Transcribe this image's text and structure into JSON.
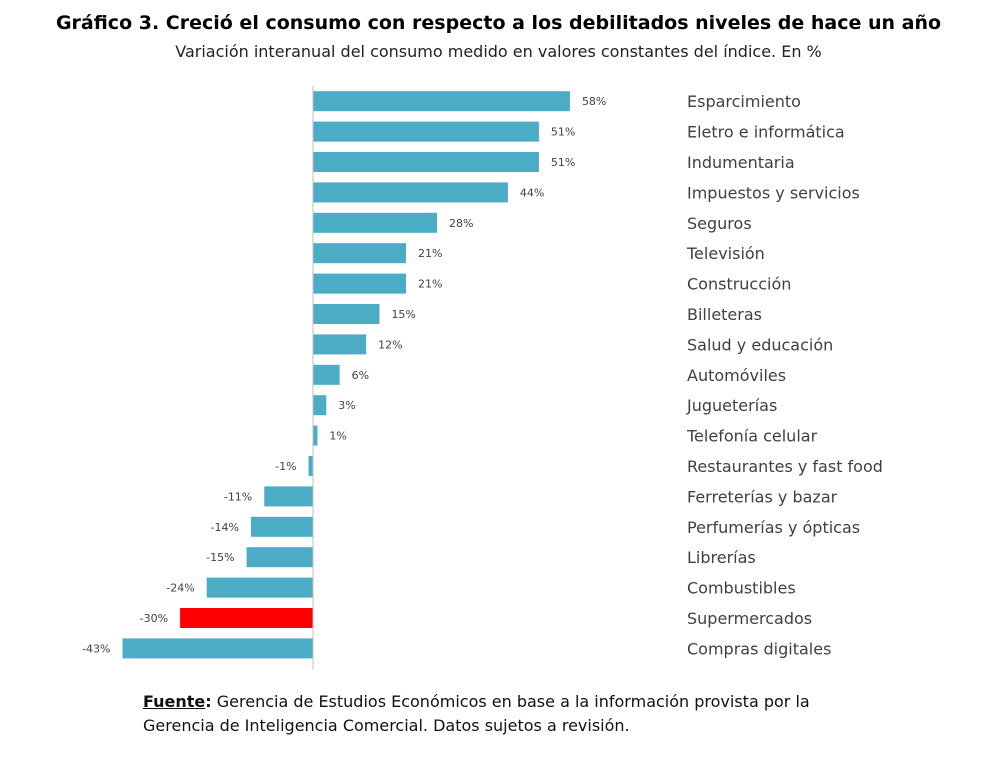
{
  "title": "Gráfico 3. Creció el consumo con respecto a los debilitados niveles de hace un año",
  "subtitle": "Variación interanual del consumo medido en valores constantes del índice. En %",
  "source": {
    "label": "Fuente",
    "line1": "Gerencia de Estudios Económicos en base a la información provista por la",
    "line2": "Gerencia de Inteligencia Comercial. Datos sujetos a revisión."
  },
  "colors": {
    "bar": "#4bacc6",
    "highlight": "#ff0000",
    "axis": "#bfbfbf",
    "label": "#404040",
    "category": "#404040"
  },
  "chart_data": {
    "type": "bar",
    "orientation": "horizontal",
    "title": "Gráfico 3. Creció el consumo con respecto a los debilitados niveles de hace un año",
    "xlabel": "",
    "ylabel": "",
    "unit": "%",
    "highlight_category": "Supermercados",
    "categories": [
      "Esparcimiento",
      "Eletro e informática",
      "Indumentaria",
      "Impuestos y servicios",
      "Seguros",
      "Televisión",
      "Construcción",
      "Billeteras",
      "Salud y educación",
      "Automóviles",
      "Jugueterías",
      "Telefonía celular",
      "Restaurantes y fast food",
      "Ferreterías y bazar",
      "Perfumerías y ópticas",
      "Librerías",
      "Combustibles",
      "Supermercados",
      "Compras digitales"
    ],
    "values": [
      58,
      51,
      51,
      44,
      28,
      21,
      21,
      15,
      12,
      6,
      3,
      1,
      -1,
      -11,
      -14,
      -15,
      -24,
      -30,
      -43
    ],
    "value_labels": [
      "58%",
      "51%",
      "51%",
      "44%",
      "28%",
      "21%",
      "21%",
      "15%",
      "12%",
      "6%",
      "3%",
      "1%",
      "-1%",
      "-11%",
      "-14%",
      "-15%",
      "-24%",
      "-30%",
      "-43%"
    ]
  }
}
